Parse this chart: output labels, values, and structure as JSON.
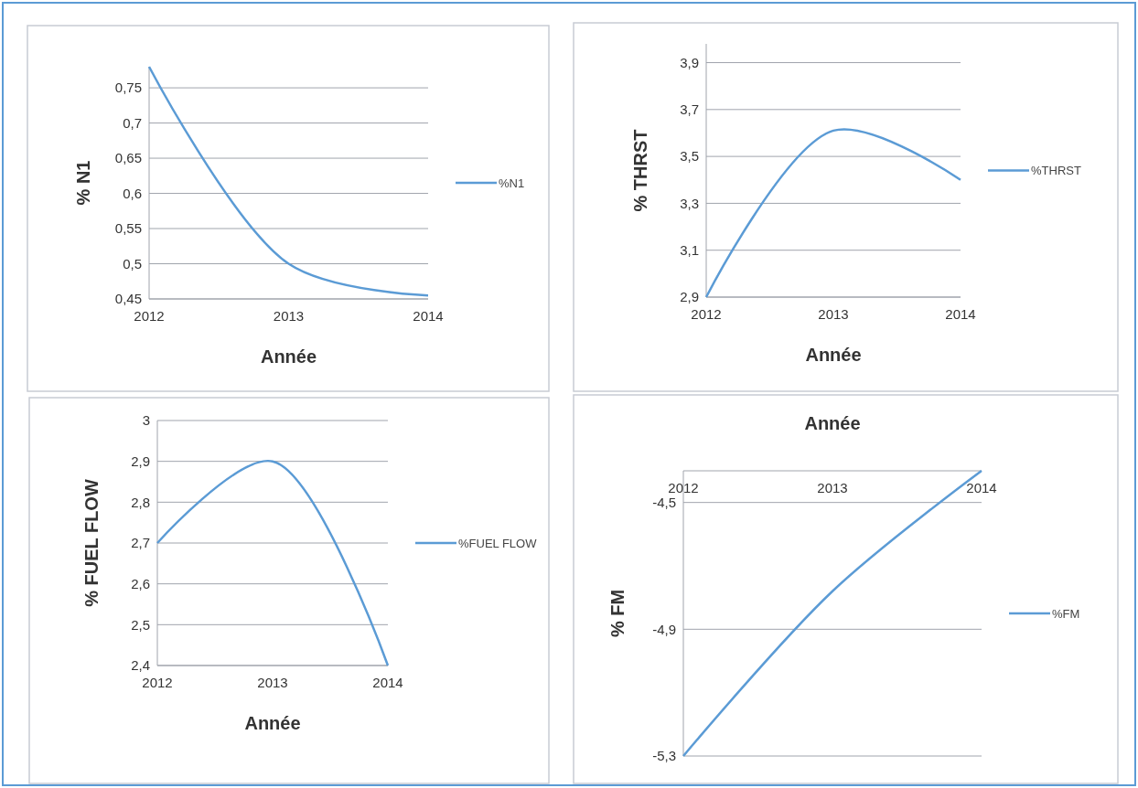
{
  "chart_data": [
    {
      "type": "line",
      "categories": [
        "2012",
        "2013",
        "2014"
      ],
      "series": [
        {
          "name": "%N1",
          "color": "#5b9bd5",
          "values": [
            0.78,
            0.5,
            0.455
          ]
        }
      ],
      "xlabel": "Année",
      "ylabel": "% N1",
      "ylim": [
        0.45,
        0.78
      ],
      "yticks": [
        {
          "value": 0.45,
          "label": "0,45"
        },
        {
          "value": 0.5,
          "label": "0,5"
        },
        {
          "value": 0.55,
          "label": "0,55"
        },
        {
          "value": 0.6,
          "label": "0,6"
        },
        {
          "value": 0.65,
          "label": "0,65"
        },
        {
          "value": 0.7,
          "label": "0,7"
        },
        {
          "value": 0.75,
          "label": "0,75"
        }
      ],
      "grid": "y",
      "legend": "right"
    },
    {
      "type": "line",
      "categories": [
        "2012",
        "2013",
        "2014"
      ],
      "series": [
        {
          "name": "%THRST",
          "color": "#5b9bd5",
          "values": [
            2.9,
            3.61,
            3.4
          ]
        }
      ],
      "xlabel": "Année",
      "ylabel": "% THRST",
      "ylim": [
        2.9,
        3.98
      ],
      "yticks": [
        {
          "value": 2.9,
          "label": "2,9"
        },
        {
          "value": 3.1,
          "label": "3,1"
        },
        {
          "value": 3.3,
          "label": "3,3"
        },
        {
          "value": 3.5,
          "label": "3,5"
        },
        {
          "value": 3.7,
          "label": "3,7"
        },
        {
          "value": 3.9,
          "label": "3,9"
        }
      ],
      "grid": "y",
      "legend": "right"
    },
    {
      "type": "line",
      "categories": [
        "2012",
        "2013",
        "2014"
      ],
      "series": [
        {
          "name": "%FUEL FLOW",
          "color": "#5b9bd5",
          "values": [
            2.7,
            2.9,
            2.4
          ]
        }
      ],
      "xlabel": "Année",
      "ylabel": "% FUEL FLOW",
      "ylim": [
        2.4,
        3
      ],
      "yticks": [
        {
          "value": 2.4,
          "label": "2,4"
        },
        {
          "value": 2.5,
          "label": "2,5"
        },
        {
          "value": 2.6,
          "label": "2,6"
        },
        {
          "value": 2.7,
          "label": "2,7"
        },
        {
          "value": 2.8,
          "label": "2,8"
        },
        {
          "value": 2.9,
          "label": "2,9"
        },
        3
      ],
      "grid": "y",
      "legend": "right"
    },
    {
      "type": "line",
      "categories": [
        "2012",
        "2013",
        "2014"
      ],
      "series": [
        {
          "name": "%FM",
          "color": "#5b9bd5",
          "values": [
            -5.3,
            -4.78,
            -4.4
          ]
        }
      ],
      "xlabel": "Année",
      "ylabel": "% FM",
      "ylim": [
        -5.3,
        -4.4
      ],
      "yticks": [
        {
          "value": -5.3,
          "label": "-5,3"
        },
        {
          "value": -4.9,
          "label": "-4,9"
        },
        {
          "value": -4.5,
          "label": "-4,5"
        }
      ],
      "grid": "y",
      "legend": "right"
    }
  ]
}
